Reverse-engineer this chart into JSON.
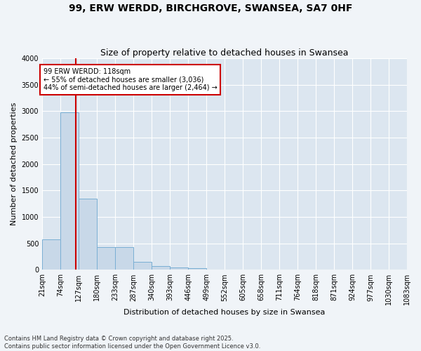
{
  "title": "99, ERW WERDD, BIRCHGROVE, SWANSEA, SA7 0HF",
  "subtitle": "Size of property relative to detached houses in Swansea",
  "xlabel": "Distribution of detached houses by size in Swansea",
  "ylabel": "Number of detached properties",
  "bar_color": "#c8d8e8",
  "bar_edge_color": "#7aafd4",
  "background_color": "#dce6f0",
  "grid_color": "#ffffff",
  "fig_background": "#f0f4f8",
  "bin_edges": [
    21,
    74,
    127,
    180,
    233,
    287,
    340,
    393,
    446,
    499,
    552,
    605,
    658,
    711,
    764,
    818,
    871,
    924,
    977,
    1030,
    1083
  ],
  "bar_heights": [
    580,
    2980,
    1340,
    430,
    430,
    155,
    70,
    45,
    30,
    8,
    3,
    2,
    1,
    1,
    0,
    0,
    0,
    0,
    0,
    0
  ],
  "property_size": 118,
  "red_line_color": "#cc0000",
  "annotation_text": "99 ERW WERDD: 118sqm\n← 55% of detached houses are smaller (3,036)\n44% of semi-detached houses are larger (2,464) →",
  "annotation_box_color": "#cc0000",
  "ylim": [
    0,
    4000
  ],
  "yticks": [
    0,
    500,
    1000,
    1500,
    2000,
    2500,
    3000,
    3500,
    4000
  ],
  "footnote1": "Contains HM Land Registry data © Crown copyright and database right 2025.",
  "footnote2": "Contains public sector information licensed under the Open Government Licence v3.0.",
  "title_fontsize": 10,
  "subtitle_fontsize": 9,
  "ylabel_fontsize": 8,
  "xlabel_fontsize": 8,
  "tick_fontsize": 7,
  "annotation_fontsize": 7,
  "footnote_fontsize": 6
}
